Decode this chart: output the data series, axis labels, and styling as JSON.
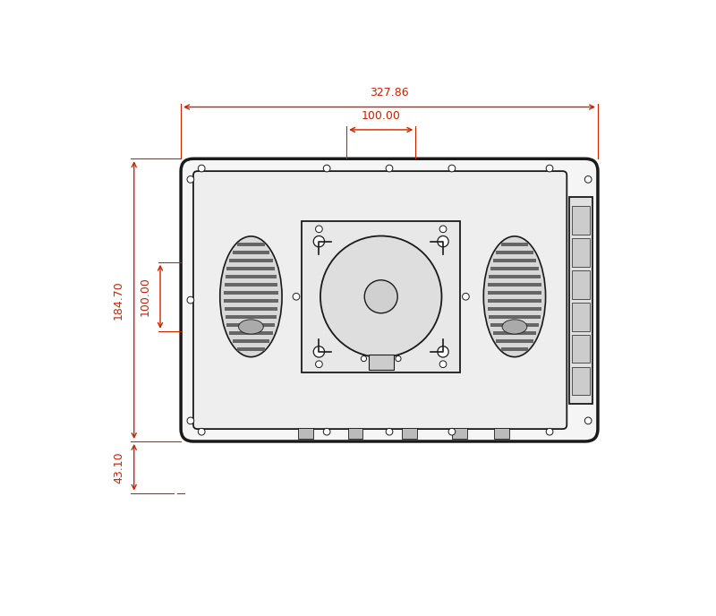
{
  "bg_color": "#ffffff",
  "dim_color": "#cc2200",
  "draw_color": "#1a1a1a",
  "draw_color_mid": "#333333",
  "fill_outer": "#f5f5f5",
  "fill_inner": "#eeeeee",
  "fill_vesa": "#e8e8e8",
  "fill_grille": "#bbbbbb",
  "dim_327_86": "327.86",
  "dim_100_00_h": "100.00",
  "dim_184_70": "184.70",
  "dim_100_00_v": "100.00",
  "dim_43_10": "43.10"
}
